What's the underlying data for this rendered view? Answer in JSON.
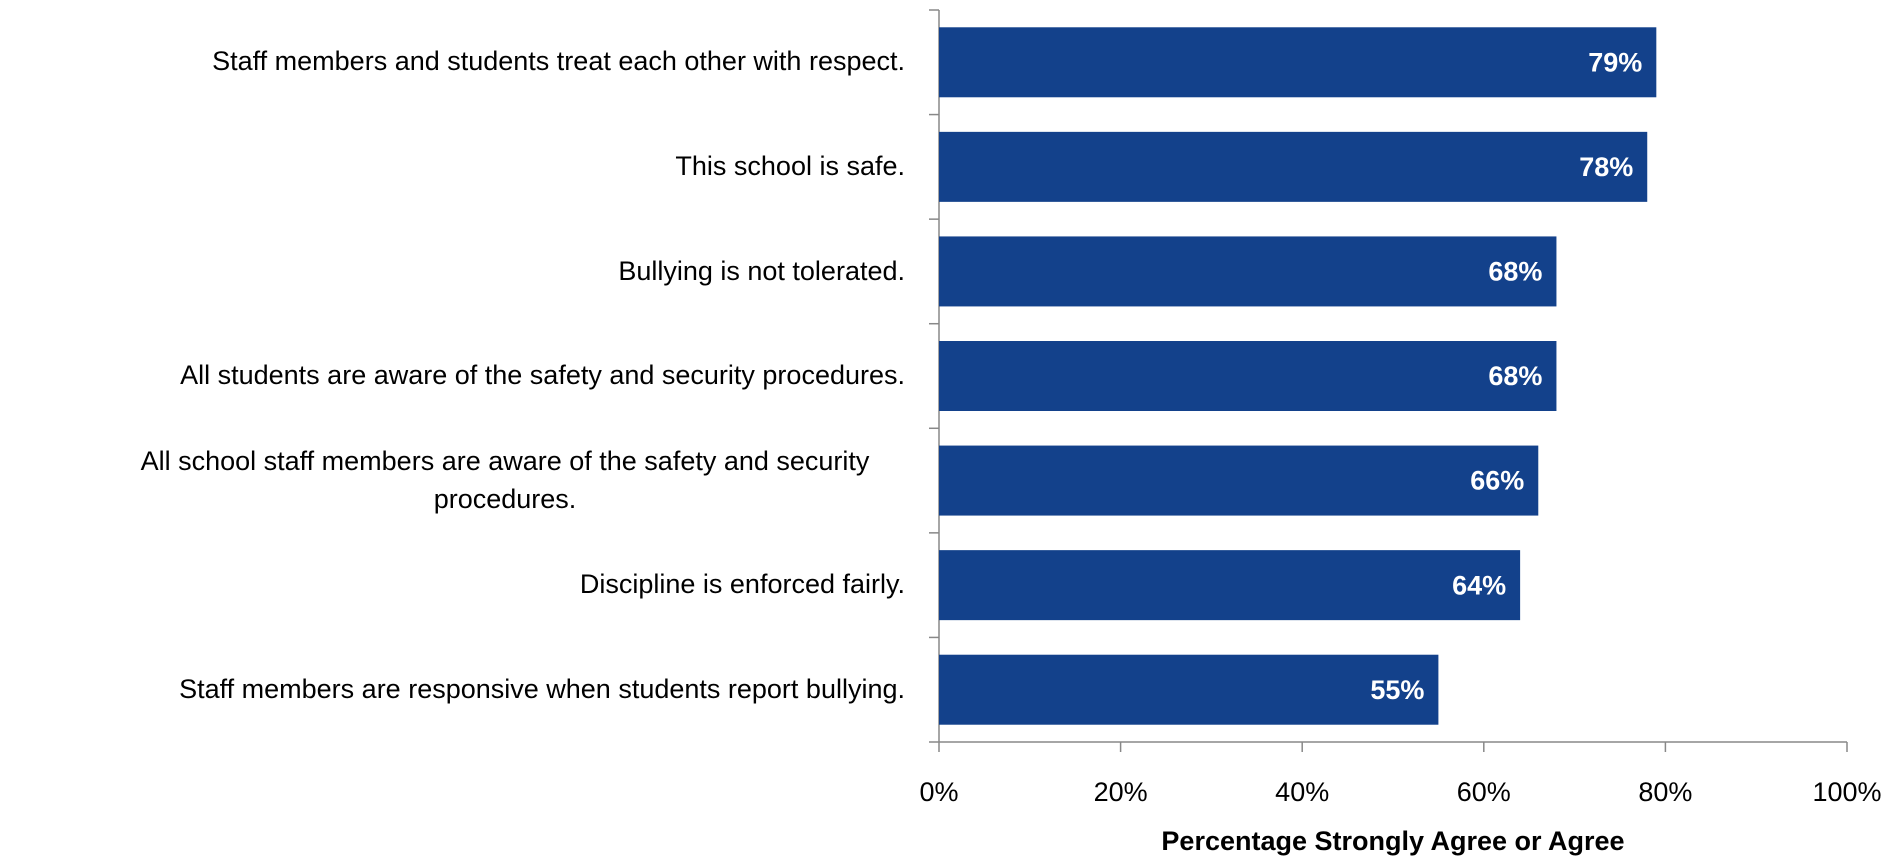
{
  "chart_data": {
    "type": "bar",
    "orientation": "horizontal",
    "categories": [
      "Staff members and students treat each other with respect.",
      "This school is safe.",
      "Bullying is not tolerated.",
      "All students are aware of the safety and security procedures.",
      "All school staff members are aware of the safety and security procedures.",
      "Discipline is enforced fairly.",
      "Staff members are responsive when students report bullying."
    ],
    "values": [
      79,
      78,
      68,
      68,
      66,
      64,
      55
    ],
    "value_labels": [
      "79%",
      "78%",
      "68%",
      "68%",
      "66%",
      "64%",
      "55%"
    ],
    "color": "#13418b",
    "xlabel": "Percentage Strongly Agree or Agree",
    "xlim": [
      0,
      100
    ],
    "xticks": [
      {
        "value": 0,
        "label": "0%"
      },
      {
        "value": 20,
        "label": "20%"
      },
      {
        "value": 40,
        "label": "40%"
      },
      {
        "value": 60,
        "label": "60%"
      },
      {
        "value": 80,
        "label": "80%"
      },
      {
        "value": 100,
        "label": "100%"
      }
    ]
  }
}
